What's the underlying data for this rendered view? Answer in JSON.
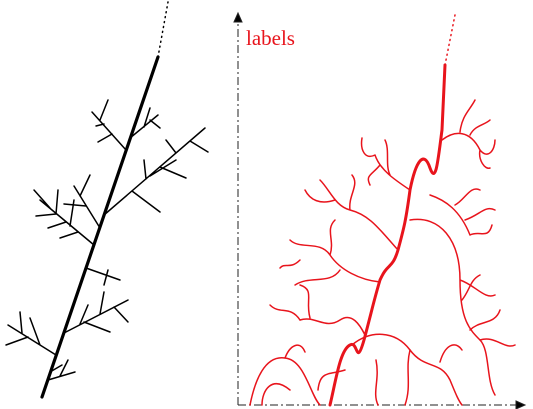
{
  "right_panel": {
    "axis_label": "labels"
  }
}
